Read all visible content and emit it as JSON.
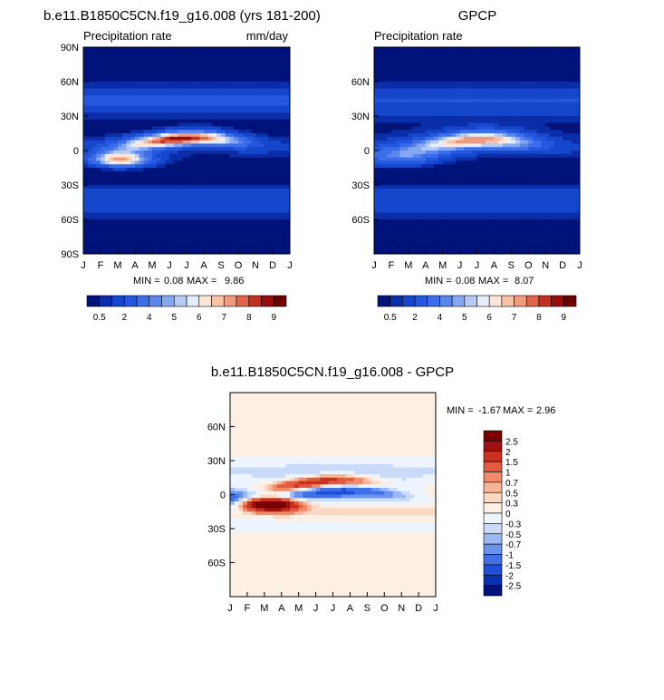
{
  "colors": {
    "precip_scale": [
      "#00137a",
      "#0a2da8",
      "#1546cc",
      "#2457e0",
      "#3b6ee8",
      "#5a86ee",
      "#86a8f2",
      "#b5cbf6",
      "#e4eefc",
      "#fde6d8",
      "#f8c2a7",
      "#f09b7d",
      "#e0654a",
      "#c2301f",
      "#9a0c0c",
      "#6e0000"
    ],
    "diff_scale": [
      "#00137a",
      "#0c30b2",
      "#1f4fd6",
      "#3f70e6",
      "#6a93ee",
      "#9cb8f4",
      "#c9dbf9",
      "#eef4fe",
      "#fdefe4",
      "#fcd7c1",
      "#f7b595",
      "#f08a68",
      "#e35a3e",
      "#c9301f",
      "#a11010",
      "#780000"
    ]
  },
  "chart_data": [
    {
      "type": "heatmap",
      "title": "b.e11.B1850C5CN.f19_g16.008 (yrs 181-200)",
      "subtitle_left": "Precipitation rate",
      "subtitle_right": "mm/day",
      "x_ticks": [
        "J",
        "F",
        "M",
        "A",
        "M",
        "J",
        "J",
        "A",
        "S",
        "O",
        "N",
        "D",
        "J"
      ],
      "y_ticks": [
        "90N",
        "60N",
        "30N",
        "0",
        "30S",
        "60S",
        "90S"
      ],
      "stats": {
        "min_label": "MIN =",
        "min": "0.08",
        "max_label": "MAX =",
        "max": "9.86"
      },
      "colorbar_labels": [
        "0.5",
        "2",
        "4",
        "5",
        "6",
        "7",
        "8",
        "9"
      ],
      "colorbar_orientation": "horizontal",
      "ylim": [
        -90,
        90
      ]
    },
    {
      "type": "heatmap",
      "title": "GPCP",
      "subtitle_left": "Precipitation rate",
      "subtitle_right": "",
      "x_ticks": [
        "J",
        "F",
        "M",
        "A",
        "M",
        "J",
        "J",
        "A",
        "S",
        "O",
        "N",
        "D",
        "J"
      ],
      "y_ticks": [
        "60N",
        "30N",
        "0",
        "30S",
        "60S"
      ],
      "stats": {
        "min_label": "MIN =",
        "min": "0.08",
        "max_label": "MAX =",
        "max": "8.07"
      },
      "colorbar_labels": [
        "0.5",
        "2",
        "4",
        "5",
        "6",
        "7",
        "8",
        "9"
      ],
      "colorbar_orientation": "horizontal",
      "ylim": [
        -90,
        90
      ]
    },
    {
      "type": "heatmap",
      "title": "b.e11.B1850C5CN.f19_g16.008 - GPCP",
      "x_ticks": [
        "J",
        "F",
        "M",
        "A",
        "M",
        "J",
        "J",
        "A",
        "S",
        "O",
        "N",
        "D",
        "J"
      ],
      "y_ticks": [
        "60N",
        "30N",
        "0",
        "30S",
        "60S"
      ],
      "stats": {
        "min_label": "MIN =",
        "min": "-1.67",
        "max_label": "MAX =",
        "max": "2.96"
      },
      "colorbar_labels": [
        "2.5",
        "2",
        "1.5",
        "1",
        "0.7",
        "0.5",
        "0.3",
        "0",
        "-0.3",
        "-0.5",
        "-0.7",
        "-1",
        "-1.5",
        "-2",
        "-2.5"
      ],
      "colorbar_orientation": "vertical",
      "ylim": [
        -90,
        90
      ]
    }
  ]
}
